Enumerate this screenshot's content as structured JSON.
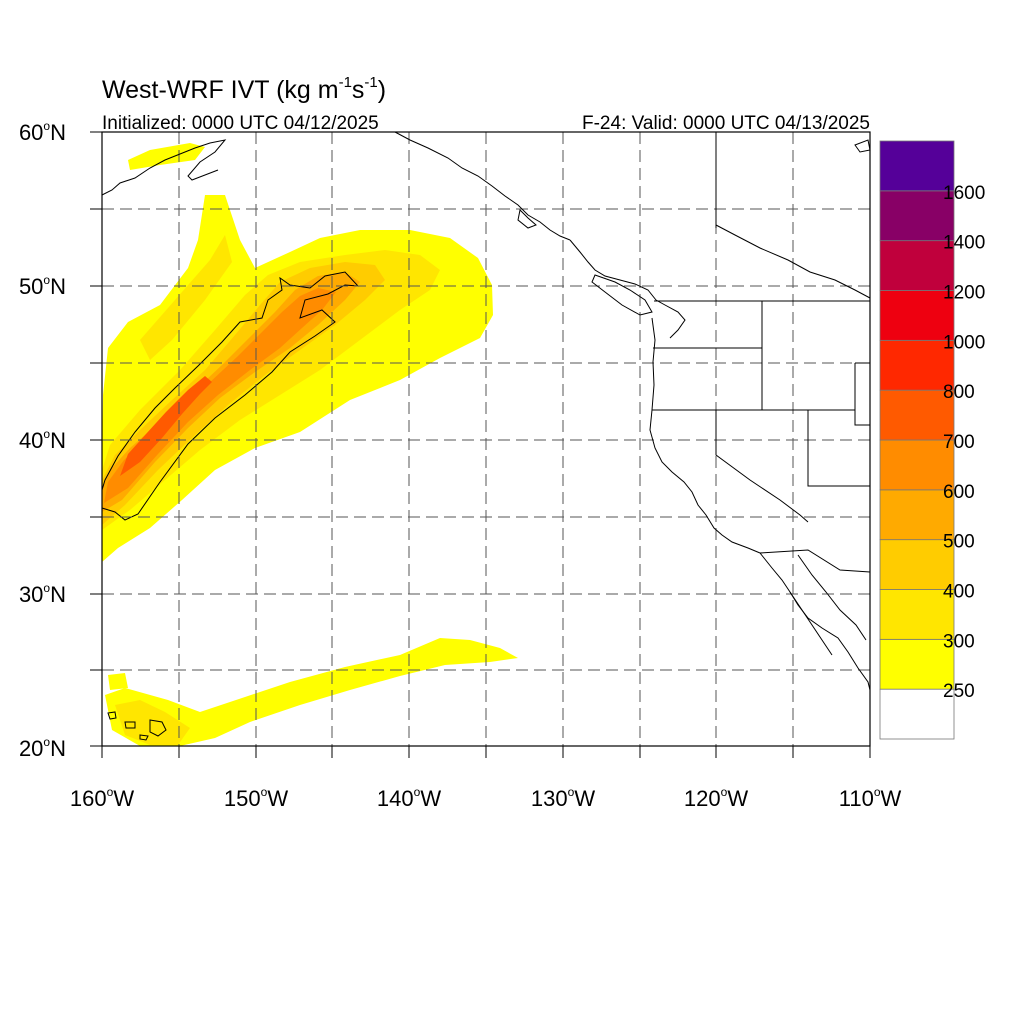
{
  "title": {
    "main": "West-WRF IVT (kg m",
    "sup1": "-1",
    "mid": "s",
    "sup2": "-1",
    "end": ")"
  },
  "subtitle_left": "Initialized: 0000 UTC 04/12/2025",
  "subtitle_right": "F-24: Valid: 0000 UTC 04/13/2025",
  "lat_labels": [
    {
      "deg": "60",
      "hemi": "N"
    },
    {
      "deg": "50",
      "hemi": "N"
    },
    {
      "deg": "40",
      "hemi": "N"
    },
    {
      "deg": "30",
      "hemi": "N"
    },
    {
      "deg": "20",
      "hemi": "N"
    }
  ],
  "lon_labels": [
    {
      "deg": "160",
      "hemi": "W"
    },
    {
      "deg": "150",
      "hemi": "W"
    },
    {
      "deg": "140",
      "hemi": "W"
    },
    {
      "deg": "130",
      "hemi": "W"
    },
    {
      "deg": "120",
      "hemi": "W"
    },
    {
      "deg": "110",
      "hemi": "W"
    }
  ],
  "colorbar": {
    "colors": [
      "#ffffff",
      "#ffff00",
      "#ffe600",
      "#ffcc00",
      "#ffaa00",
      "#ff8c00",
      "#ff5a00",
      "#ff2800",
      "#ee0010",
      "#c0003c",
      "#880066",
      "#550099"
    ],
    "labels": [
      "250",
      "300",
      "400",
      "500",
      "600",
      "700",
      "800",
      "1000",
      "1200",
      "1400",
      "1600"
    ]
  },
  "ivt_colors": {
    "c250": "#ffff00",
    "c300": "#ffe600",
    "c400": "#ffcc00",
    "c500": "#ffaa00",
    "c600": "#ff8c00",
    "c700": "#ff5a00"
  }
}
